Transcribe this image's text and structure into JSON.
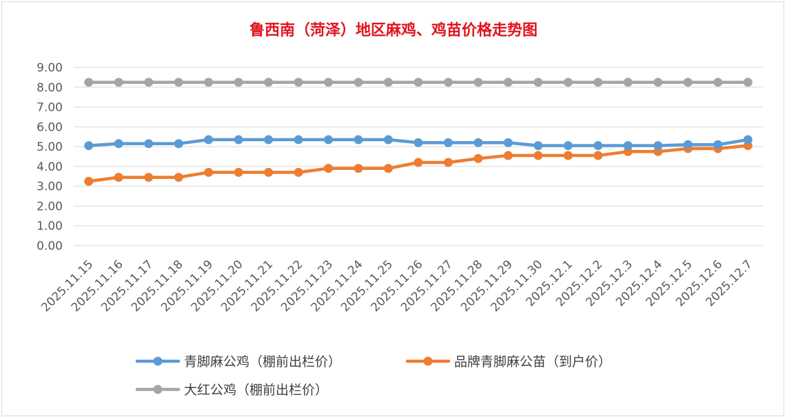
{
  "chart_data": {
    "type": "line",
    "title": "鲁西南（菏泽）地区麻鸡、鸡苗价格走势图",
    "xlabel": "",
    "ylabel": "",
    "ylim": [
      0,
      9
    ],
    "ytick_labels": [
      "0.00",
      "1.00",
      "2.00",
      "3.00",
      "4.00",
      "5.00",
      "6.00",
      "7.00",
      "8.00",
      "9.00"
    ],
    "grid": true,
    "legend_position": "bottom",
    "categories": [
      "2025.11.15",
      "2025.11.16",
      "2025.11.17",
      "2025.11.18",
      "2025.11.19",
      "2025.11.20",
      "2025.11.21",
      "2025.11.22",
      "2025.11.23",
      "2025.11.24",
      "2025.11.25",
      "2025.11.26",
      "2025.11.27",
      "2025.11.28",
      "2025.11.29",
      "2025.11.30",
      "2025.12.1",
      "2025.12.2",
      "2025.12.3",
      "2025.12.4",
      "2025.12.5",
      "2025.12.6",
      "2025.12.7"
    ],
    "series": [
      {
        "name": "青脚麻公鸡（棚前出栏价）",
        "color": "#5b9bd5",
        "values": [
          5.05,
          5.15,
          5.15,
          5.15,
          5.35,
          5.35,
          5.35,
          5.35,
          5.35,
          5.35,
          5.35,
          5.2,
          5.2,
          5.2,
          5.2,
          5.05,
          5.05,
          5.05,
          5.05,
          5.05,
          5.1,
          5.1,
          5.35
        ]
      },
      {
        "name": "品牌青脚麻公苗（到户价）",
        "color": "#ed7d31",
        "values": [
          3.25,
          3.45,
          3.45,
          3.45,
          3.7,
          3.7,
          3.7,
          3.7,
          3.9,
          3.9,
          3.9,
          4.2,
          4.2,
          4.4,
          4.55,
          4.55,
          4.55,
          4.55,
          4.75,
          4.75,
          4.9,
          4.9,
          5.05
        ]
      },
      {
        "name": "大红公鸡（棚前出栏价）",
        "color": "#a5a5a5",
        "values": [
          8.25,
          8.25,
          8.25,
          8.25,
          8.25,
          8.25,
          8.25,
          8.25,
          8.25,
          8.25,
          8.25,
          8.25,
          8.25,
          8.25,
          8.25,
          8.25,
          8.25,
          8.25,
          8.25,
          8.25,
          8.25,
          8.25,
          8.25
        ]
      }
    ]
  }
}
